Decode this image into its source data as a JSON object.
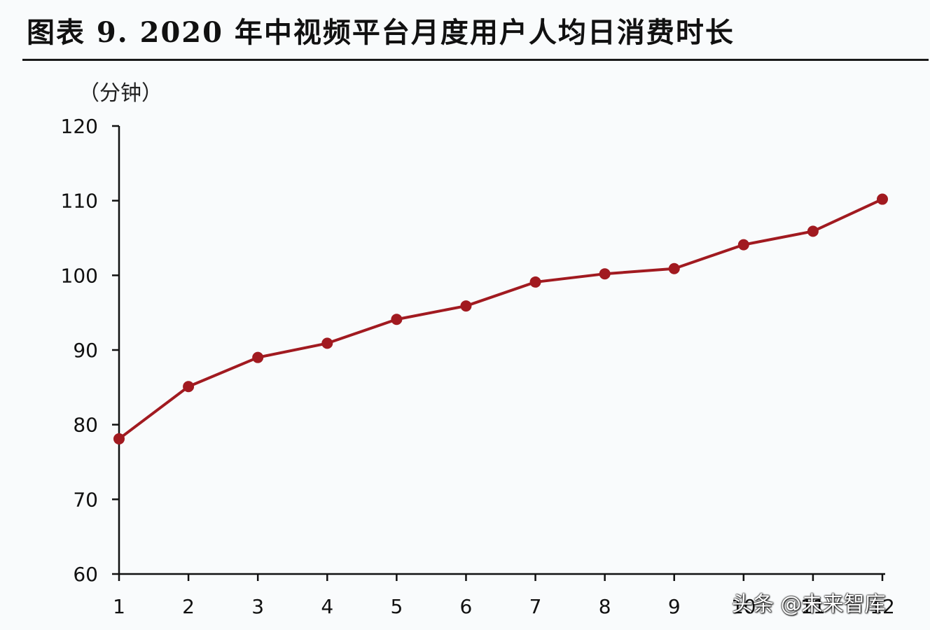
{
  "header": {
    "title": "图表 9. 2020 年中视频平台月度用户人均日消费时长",
    "unit": "（分钟）"
  },
  "watermark": "头条 @未来智库",
  "colors": {
    "line": "#a11a20",
    "axis": "#111111"
  },
  "chart_data": {
    "type": "line",
    "title": "图表 9. 2020 年中视频平台月度用户人均日消费时长",
    "ylabel": "（分钟）",
    "xlabel": "",
    "categories": [
      "1",
      "2",
      "3",
      "4",
      "5",
      "6",
      "7",
      "8",
      "9",
      "10",
      "11",
      "12"
    ],
    "series": [
      {
        "values": [
          78.1,
          85.1,
          89.0,
          90.9,
          94.1,
          95.9,
          99.1,
          100.2,
          100.9,
          104.1,
          105.9,
          110.2
        ]
      }
    ],
    "ylim": [
      60,
      120
    ],
    "yticks": [
      60,
      70,
      80,
      90,
      100,
      110,
      120
    ],
    "grid": false,
    "legend": "none"
  }
}
